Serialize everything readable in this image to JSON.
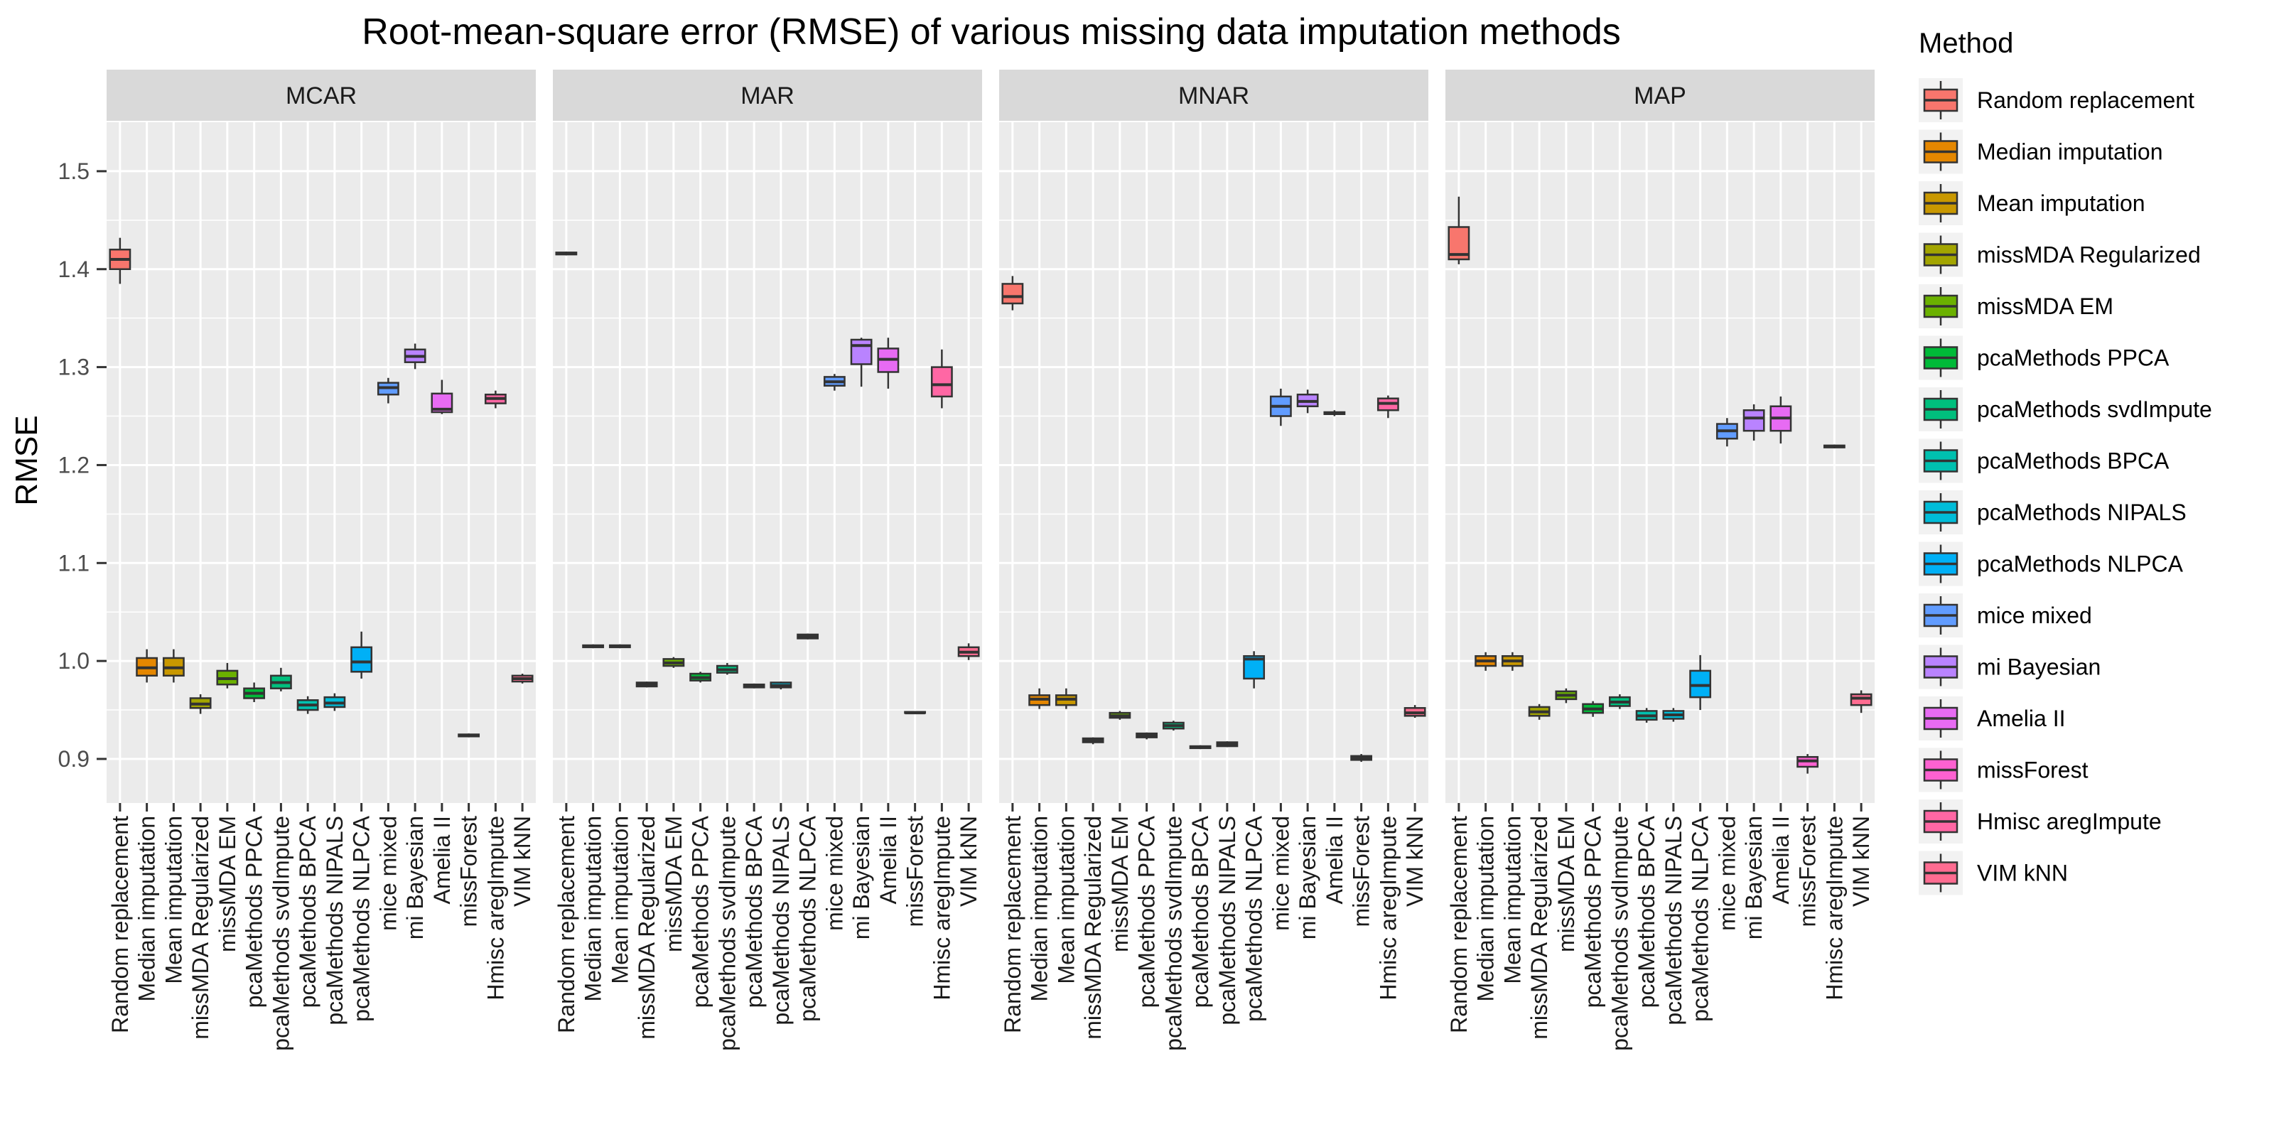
{
  "chart_data": {
    "type": "boxplot",
    "title": "Root-mean-square error (RMSE) of various missing data imputation methods",
    "ylabel": "RMSE",
    "xlabel": "",
    "ylim": [
      0.855,
      1.55
    ],
    "yticks": [
      "0.9",
      "1.0",
      "1.1",
      "1.2",
      "1.3",
      "1.4",
      "1.5"
    ],
    "legend_title": "Method",
    "legend_position": "right",
    "methods": [
      {
        "name": "Random replacement",
        "color": "#F8766D"
      },
      {
        "name": "Median imputation",
        "color": "#E58700"
      },
      {
        "name": "Mean imputation",
        "color": "#C99800"
      },
      {
        "name": "missMDA Regularized",
        "color": "#A3A500"
      },
      {
        "name": "missMDA EM",
        "color": "#6BB100"
      },
      {
        "name": "pcaMethods PPCA",
        "color": "#00BA38"
      },
      {
        "name": "pcaMethods svdImpute",
        "color": "#00BF7D"
      },
      {
        "name": "pcaMethods BPCA",
        "color": "#00C0AF"
      },
      {
        "name": "pcaMethods NIPALS",
        "color": "#00BCD8"
      },
      {
        "name": "pcaMethods NLPCA",
        "color": "#00B0F6"
      },
      {
        "name": "mice mixed",
        "color": "#619CFF"
      },
      {
        "name": "mi Bayesian",
        "color": "#B983FF"
      },
      {
        "name": "Amelia II",
        "color": "#E76BF3"
      },
      {
        "name": "missForest",
        "color": "#FD61D1"
      },
      {
        "name": "Hmisc aregImpute",
        "color": "#FF67A4"
      },
      {
        "name": "VIM kNN",
        "color": "#FF6C91"
      }
    ],
    "panels": [
      {
        "label": "MCAR",
        "boxes": [
          [
            1.385,
            1.4,
            1.41,
            1.42,
            1.432
          ],
          [
            0.978,
            0.985,
            0.993,
            1.003,
            1.012
          ],
          [
            0.978,
            0.985,
            0.993,
            1.003,
            1.012
          ],
          [
            0.946,
            0.952,
            0.956,
            0.962,
            0.966
          ],
          [
            0.972,
            0.976,
            0.982,
            0.99,
            0.998
          ],
          [
            0.958,
            0.962,
            0.967,
            0.972,
            0.978
          ],
          [
            0.969,
            0.972,
            0.978,
            0.985,
            0.993
          ],
          [
            0.946,
            0.95,
            0.955,
            0.96,
            0.964
          ],
          [
            0.949,
            0.953,
            0.957,
            0.963,
            0.967
          ],
          [
            0.982,
            0.989,
            0.999,
            1.014,
            1.03
          ],
          [
            1.263,
            1.272,
            1.279,
            1.284,
            1.289
          ],
          [
            1.298,
            1.305,
            1.311,
            1.318,
            1.324
          ],
          [
            1.252,
            1.254,
            1.257,
            1.273,
            1.287
          ],
          [
            0.922,
            0.923,
            0.924,
            0.925,
            0.926
          ],
          [
            1.258,
            1.263,
            1.268,
            1.272,
            1.276
          ],
          [
            0.977,
            0.979,
            0.982,
            0.985,
            0.987
          ]
        ]
      },
      {
        "label": "MAR",
        "boxes": [
          [
            1.414,
            1.415,
            1.416,
            1.417,
            1.418
          ],
          [
            1.013,
            1.014,
            1.015,
            1.016,
            1.017
          ],
          [
            1.013,
            1.014,
            1.015,
            1.016,
            1.017
          ],
          [
            0.973,
            0.974,
            0.976,
            0.978,
            0.979
          ],
          [
            0.993,
            0.995,
            0.998,
            1.002,
            1.004
          ],
          [
            0.978,
            0.98,
            0.983,
            0.987,
            0.989
          ],
          [
            0.986,
            0.988,
            0.991,
            0.995,
            0.998
          ],
          [
            0.972,
            0.973,
            0.974,
            0.976,
            0.977
          ],
          [
            0.971,
            0.973,
            0.975,
            0.978,
            0.979
          ],
          [
            1.022,
            1.023,
            1.025,
            1.027,
            1.028
          ],
          [
            1.276,
            1.281,
            1.285,
            1.29,
            1.293
          ],
          [
            1.28,
            1.303,
            1.322,
            1.328,
            1.33
          ],
          [
            1.278,
            1.295,
            1.308,
            1.319,
            1.33
          ],
          [
            0.946,
            0.947,
            0.947,
            0.948,
            0.948
          ],
          [
            1.258,
            1.27,
            1.282,
            1.3,
            1.318
          ],
          [
            1.001,
            1.005,
            1.009,
            1.014,
            1.018
          ]
        ]
      },
      {
        "label": "MNAR",
        "boxes": [
          [
            1.358,
            1.365,
            1.372,
            1.385,
            1.393
          ],
          [
            0.951,
            0.955,
            0.961,
            0.965,
            0.972
          ],
          [
            0.951,
            0.955,
            0.961,
            0.965,
            0.972
          ],
          [
            0.915,
            0.917,
            0.919,
            0.921,
            0.922
          ],
          [
            0.94,
            0.942,
            0.944,
            0.947,
            0.949
          ],
          [
            0.92,
            0.922,
            0.924,
            0.926,
            0.927
          ],
          [
            0.929,
            0.931,
            0.934,
            0.937,
            0.939
          ],
          [
            0.91,
            0.911,
            0.912,
            0.913,
            0.914
          ],
          [
            0.912,
            0.913,
            0.915,
            0.917,
            0.918
          ],
          [
            0.972,
            0.982,
            1.002,
            1.005,
            1.01
          ],
          [
            1.24,
            1.25,
            1.26,
            1.27,
            1.278
          ],
          [
            1.253,
            1.26,
            1.265,
            1.272,
            1.277
          ],
          [
            1.25,
            1.252,
            1.253,
            1.254,
            1.256
          ],
          [
            0.897,
            0.899,
            0.901,
            0.903,
            0.905
          ],
          [
            1.248,
            1.256,
            1.263,
            1.268,
            1.271
          ],
          [
            0.942,
            0.944,
            0.947,
            0.952,
            0.955
          ]
        ]
      },
      {
        "label": "MAP",
        "boxes": [
          [
            1.405,
            1.41,
            1.415,
            1.443,
            1.474
          ],
          [
            0.99,
            0.995,
            1.0,
            1.005,
            1.009
          ],
          [
            0.99,
            0.995,
            1.0,
            1.005,
            1.009
          ],
          [
            0.94,
            0.944,
            0.948,
            0.953,
            0.956
          ],
          [
            0.957,
            0.961,
            0.965,
            0.969,
            0.972
          ],
          [
            0.943,
            0.947,
            0.951,
            0.956,
            0.959
          ],
          [
            0.951,
            0.954,
            0.958,
            0.963,
            0.966
          ],
          [
            0.937,
            0.94,
            0.944,
            0.949,
            0.952
          ],
          [
            0.938,
            0.941,
            0.945,
            0.949,
            0.952
          ],
          [
            0.95,
            0.963,
            0.975,
            0.99,
            1.006
          ],
          [
            1.219,
            1.227,
            1.235,
            1.242,
            1.248
          ],
          [
            1.225,
            1.235,
            1.248,
            1.256,
            1.262
          ],
          [
            1.222,
            1.235,
            1.248,
            1.26,
            1.27
          ],
          [
            0.885,
            0.892,
            0.898,
            0.902,
            0.905
          ],
          [
            1.217,
            1.218,
            1.219,
            1.22,
            1.221
          ],
          [
            0.947,
            0.955,
            0.962,
            0.966,
            0.97
          ]
        ]
      }
    ]
  }
}
